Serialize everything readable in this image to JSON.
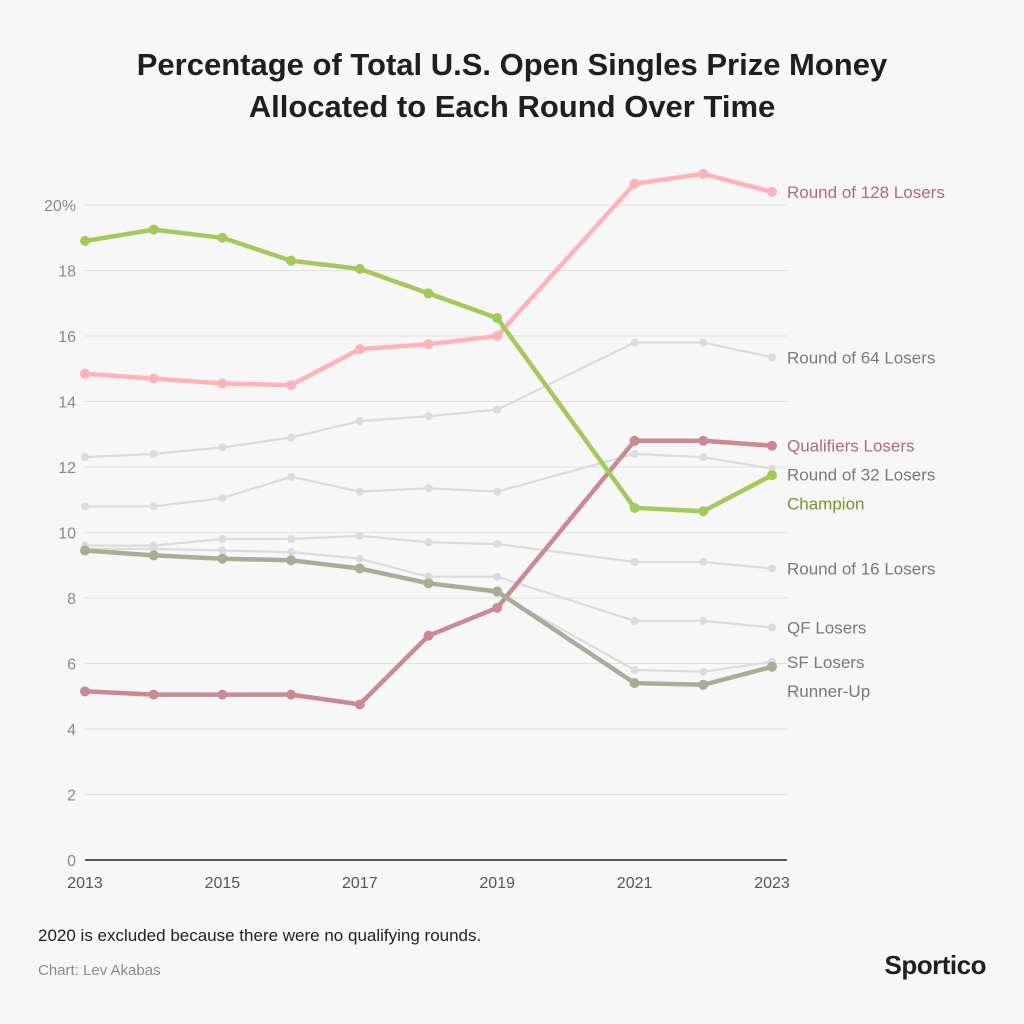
{
  "title_line1": "Percentage of Total U.S. Open Singles Prize Money",
  "title_line2": "Allocated to Each Round Over Time",
  "footnote": "2020 is excluded because there were no qualifying rounds.",
  "credit": "Chart: Lev Akabas",
  "brand": "Sportico",
  "chart_data": {
    "type": "line",
    "title": "Percentage of Total U.S. Open Singles Prize Money Allocated to Each Round Over Time",
    "xlabel": "",
    "ylabel": "",
    "x": [
      2013,
      2014,
      2015,
      2016,
      2017,
      2018,
      2019,
      2021,
      2022,
      2023
    ],
    "xticks": [
      "2013",
      "2015",
      "2017",
      "2019",
      "2021",
      "2023"
    ],
    "yticks": [
      "0",
      "2",
      "4",
      "6",
      "8",
      "10",
      "12",
      "14",
      "16",
      "18",
      "20%"
    ],
    "ylim": [
      0,
      20
    ],
    "grid": true,
    "legend": "direct labels at right",
    "series": [
      {
        "name": "Round of 64 Losers",
        "color": "#dcdcdc",
        "labelColor": "#7a7a7a",
        "emphasis": false,
        "values": [
          12.3,
          12.4,
          12.6,
          12.9,
          13.4,
          13.55,
          13.75,
          15.8,
          15.8,
          15.35
        ]
      },
      {
        "name": "Round of 32 Losers",
        "color": "#dcdcdc",
        "labelColor": "#7a7a7a",
        "emphasis": false,
        "values": [
          10.8,
          10.8,
          11.05,
          11.7,
          11.25,
          11.35,
          11.25,
          12.4,
          12.3,
          11.95
        ]
      },
      {
        "name": "Round of 16 Losers",
        "color": "#dcdcdc",
        "labelColor": "#7a7a7a",
        "emphasis": false,
        "values": [
          9.6,
          9.6,
          9.8,
          9.8,
          9.9,
          9.7,
          9.65,
          9.1,
          9.1,
          8.9
        ]
      },
      {
        "name": "QF Losers",
        "color": "#dcdcdc",
        "labelColor": "#7a7a7a",
        "emphasis": false,
        "values": [
          9.5,
          9.5,
          9.45,
          9.4,
          9.2,
          8.65,
          8.65,
          7.3,
          7.3,
          7.1
        ]
      },
      {
        "name": "SF Losers",
        "color": "#dcdcdc",
        "labelColor": "#7a7a7a",
        "emphasis": false,
        "values": [
          9.45,
          9.3,
          9.2,
          9.15,
          8.9,
          8.45,
          8.15,
          5.8,
          5.75,
          6.05
        ]
      },
      {
        "name": "Round of 128 Losers",
        "color": "#ffb3b8",
        "labelColor": "#b26a74",
        "emphasis": true,
        "values": [
          14.85,
          14.7,
          14.55,
          14.5,
          15.6,
          15.75,
          16.0,
          20.65,
          20.95,
          20.4
        ]
      },
      {
        "name": "Qualifiers Losers",
        "color": "#c98b91",
        "labelColor": "#b26a74",
        "emphasis": true,
        "values": [
          5.15,
          5.05,
          5.05,
          5.05,
          4.75,
          6.85,
          7.7,
          12.8,
          12.8,
          12.65
        ]
      },
      {
        "name": "Champion",
        "color": "#a3c95a",
        "labelColor": "#6e9a2a",
        "emphasis": true,
        "values": [
          18.9,
          19.25,
          19.0,
          18.3,
          18.05,
          17.3,
          16.55,
          10.75,
          10.65,
          11.75
        ]
      },
      {
        "name": "Runner-Up",
        "color": "#a9ad94",
        "labelColor": "#787c64",
        "emphasis": true,
        "values": [
          9.45,
          9.3,
          9.2,
          9.15,
          8.9,
          8.45,
          8.2,
          5.4,
          5.35,
          5.9
        ]
      }
    ]
  }
}
